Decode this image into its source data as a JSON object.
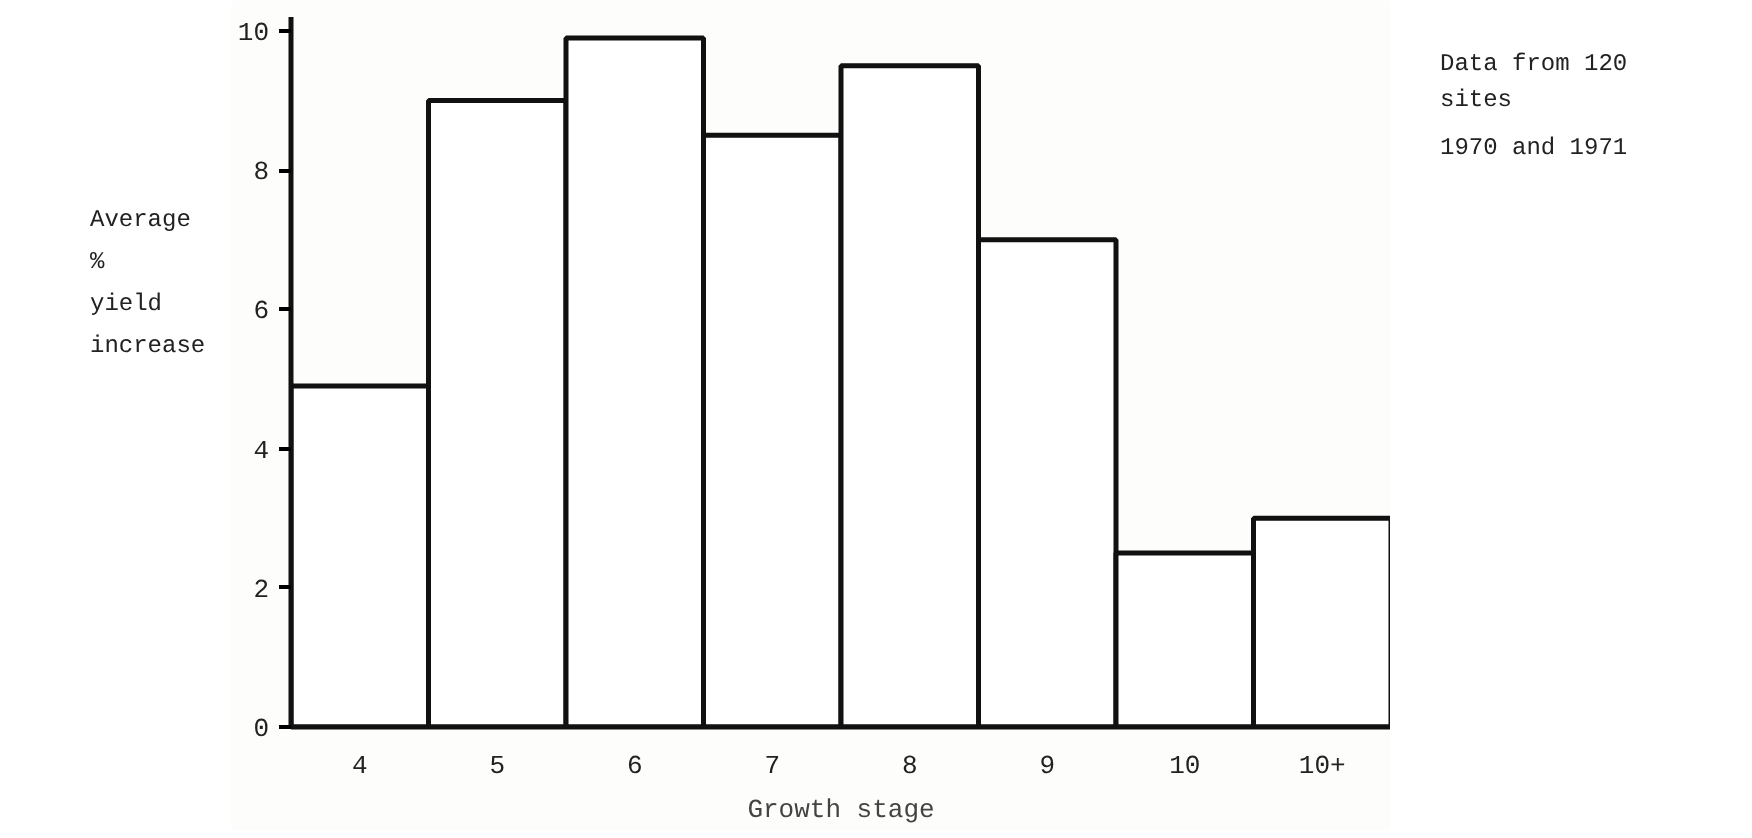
{
  "chart_data": {
    "type": "bar",
    "xlabel": "Growth stage",
    "ylabel": "Average\n%\nyield\nincrease",
    "categories": [
      "4",
      "5",
      "6",
      "7",
      "8",
      "9",
      "10",
      "10+"
    ],
    "values": [
      4.9,
      9.0,
      9.9,
      8.5,
      9.5,
      7.0,
      2.5,
      3.0
    ],
    "color": "#ffffff",
    "ylim": [
      0,
      10.2
    ],
    "yticks": [
      0,
      2,
      4,
      6,
      8,
      10
    ],
    "annotations": [
      "Data from 120\nsites",
      "1970 and 1971"
    ]
  }
}
